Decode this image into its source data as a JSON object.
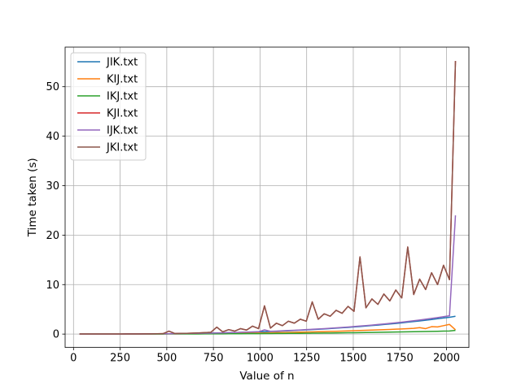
{
  "chart_data": {
    "type": "line",
    "title": "",
    "xlabel": "Value of n",
    "ylabel": "Time taken (s)",
    "xlim": [
      -45,
      2120
    ],
    "ylim": [
      -2.7,
      58
    ],
    "xticks": [
      0,
      250,
      500,
      750,
      1000,
      1250,
      1500,
      1750,
      2000
    ],
    "yticks": [
      0,
      10,
      20,
      30,
      40,
      50
    ],
    "grid": true,
    "legend_position": "upper-left",
    "x": [
      32,
      64,
      96,
      128,
      160,
      192,
      224,
      256,
      288,
      320,
      352,
      384,
      416,
      448,
      480,
      512,
      544,
      576,
      608,
      640,
      672,
      704,
      736,
      768,
      800,
      832,
      864,
      896,
      928,
      960,
      992,
      1024,
      1056,
      1088,
      1120,
      1152,
      1184,
      1216,
      1248,
      1280,
      1312,
      1344,
      1376,
      1408,
      1440,
      1472,
      1504,
      1536,
      1568,
      1600,
      1632,
      1664,
      1696,
      1728,
      1760,
      1792,
      1824,
      1856,
      1888,
      1920,
      1952,
      1984,
      2016,
      2048
    ],
    "series": [
      {
        "name": "JIK.txt",
        "color": "#1f77b4",
        "values": [
          0.0,
          0.0,
          0.0,
          0.0,
          0.0,
          0.01,
          0.01,
          0.01,
          0.02,
          0.02,
          0.03,
          0.03,
          0.04,
          0.05,
          0.06,
          0.07,
          0.08,
          0.1,
          0.11,
          0.13,
          0.15,
          0.17,
          0.19,
          0.21,
          0.24,
          0.27,
          0.3,
          0.33,
          0.36,
          0.4,
          0.44,
          0.48,
          0.52,
          0.57,
          0.62,
          0.67,
          0.72,
          0.78,
          0.84,
          0.9,
          0.97,
          1.04,
          1.11,
          1.19,
          1.27,
          1.35,
          1.44,
          1.53,
          1.62,
          1.72,
          1.82,
          1.93,
          2.04,
          2.15,
          2.27,
          2.4,
          2.53,
          2.66,
          2.8,
          2.95,
          3.1,
          3.25,
          3.4,
          3.6
        ]
      },
      {
        "name": "KIJ.txt",
        "color": "#ff7f0e",
        "values": [
          0.0,
          0.0,
          0.0,
          0.0,
          0.0,
          0.0,
          0.0,
          0.0,
          0.01,
          0.01,
          0.01,
          0.01,
          0.02,
          0.02,
          0.03,
          0.04,
          0.04,
          0.05,
          0.06,
          0.07,
          0.08,
          0.09,
          0.1,
          0.11,
          0.12,
          0.14,
          0.15,
          0.17,
          0.19,
          0.2,
          0.22,
          0.24,
          0.26,
          0.29,
          0.31,
          0.33,
          0.36,
          0.39,
          0.41,
          0.44,
          0.47,
          0.5,
          0.54,
          0.57,
          0.61,
          0.64,
          0.68,
          0.72,
          0.76,
          0.8,
          0.85,
          0.89,
          0.94,
          0.99,
          1.04,
          1.1,
          1.15,
          1.3,
          1.1,
          1.5,
          1.45,
          1.7,
          1.95,
          0.85
        ]
      },
      {
        "name": "IKJ.txt",
        "color": "#2ca02c",
        "values": [
          0.0,
          0.0,
          0.0,
          0.0,
          0.0,
          0.0,
          0.0,
          0.0,
          0.0,
          0.0,
          0.01,
          0.01,
          0.01,
          0.01,
          0.01,
          0.02,
          0.02,
          0.02,
          0.02,
          0.03,
          0.03,
          0.04,
          0.04,
          0.05,
          0.05,
          0.06,
          0.06,
          0.07,
          0.08,
          0.09,
          0.09,
          0.1,
          0.11,
          0.12,
          0.13,
          0.14,
          0.15,
          0.16,
          0.17,
          0.18,
          0.2,
          0.21,
          0.22,
          0.24,
          0.25,
          0.27,
          0.28,
          0.3,
          0.32,
          0.33,
          0.35,
          0.37,
          0.39,
          0.41,
          0.43,
          0.45,
          0.47,
          0.5,
          0.52,
          0.54,
          0.57,
          0.6,
          0.62,
          0.75
        ]
      },
      {
        "name": "KJI.txt",
        "color": "#d62728",
        "values": [
          0.0,
          0.0,
          0.0,
          0.0,
          0.0,
          0.0,
          0.01,
          0.01,
          0.02,
          0.02,
          0.03,
          0.04,
          0.05,
          0.06,
          0.08,
          0.6,
          0.1,
          0.14,
          0.16,
          0.2,
          0.24,
          0.3,
          0.35,
          1.4,
          0.45,
          0.9,
          0.6,
          1.1,
          0.8,
          1.6,
          1.1,
          5.7,
          1.2,
          2.2,
          1.7,
          2.6,
          2.2,
          3.0,
          2.6,
          6.5,
          3.0,
          4.1,
          3.6,
          4.8,
          4.2,
          5.6,
          4.6,
          15.6,
          5.3,
          7.1,
          6.0,
          8.1,
          6.7,
          8.9,
          7.3,
          17.6,
          8.0,
          11.1,
          9.0,
          12.4,
          10.0,
          13.9,
          11.0,
          55.2
        ]
      },
      {
        "name": "IJK.txt",
        "color": "#9467bd",
        "values": [
          0.0,
          0.0,
          0.0,
          0.0,
          0.0,
          0.01,
          0.01,
          0.01,
          0.02,
          0.02,
          0.03,
          0.03,
          0.04,
          0.05,
          0.06,
          0.07,
          0.09,
          0.1,
          0.12,
          0.14,
          0.16,
          0.18,
          0.2,
          0.23,
          0.26,
          0.29,
          0.32,
          0.35,
          0.39,
          0.43,
          0.47,
          0.85,
          0.56,
          0.61,
          0.66,
          0.72,
          0.77,
          0.83,
          0.9,
          0.96,
          1.03,
          1.1,
          1.18,
          1.26,
          1.34,
          1.43,
          1.52,
          1.62,
          1.72,
          1.82,
          1.93,
          2.04,
          2.16,
          2.28,
          2.41,
          2.55,
          2.69,
          2.84,
          3.0,
          3.17,
          3.34,
          3.52,
          3.7,
          24.0
        ]
      },
      {
        "name": "JKI.txt",
        "color": "#8c564b",
        "values": [
          0.0,
          0.0,
          0.0,
          0.0,
          0.0,
          0.0,
          0.01,
          0.01,
          0.02,
          0.02,
          0.03,
          0.04,
          0.05,
          0.06,
          0.08,
          0.6,
          0.1,
          0.14,
          0.16,
          0.2,
          0.24,
          0.3,
          0.35,
          1.4,
          0.45,
          0.9,
          0.6,
          1.1,
          0.8,
          1.6,
          1.1,
          5.7,
          1.2,
          2.2,
          1.7,
          2.6,
          2.2,
          3.0,
          2.6,
          6.5,
          3.0,
          4.1,
          3.6,
          4.8,
          4.2,
          5.6,
          4.6,
          15.6,
          5.3,
          7.1,
          6.0,
          8.1,
          6.7,
          8.9,
          7.3,
          17.6,
          8.0,
          11.1,
          9.0,
          12.4,
          10.0,
          13.9,
          11.0,
          55.2
        ]
      }
    ]
  }
}
